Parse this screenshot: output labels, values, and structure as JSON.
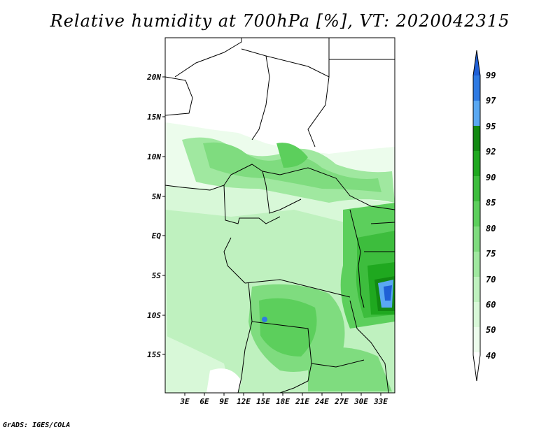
{
  "title": "Relative humidity at 700hPa [%], VT: 2020042315",
  "credit": "GrADS: IGES/COLA",
  "lat_labels": [
    "20N",
    "15N",
    "10N",
    "5N",
    "EQ",
    "5S",
    "10S",
    "15S"
  ],
  "lon_labels": [
    "3E",
    "6E",
    "9E",
    "12E",
    "15E",
    "18E",
    "21E",
    "24E",
    "27E",
    "30E",
    "33E"
  ],
  "colorbar": {
    "levels": [
      "99",
      "97",
      "95",
      "92",
      "90",
      "85",
      "80",
      "75",
      "70",
      "60",
      "50",
      "40"
    ],
    "colors": [
      "#1f5fd6",
      "#2e7ae3",
      "#5aa8f2",
      "#128a12",
      "#1fa81f",
      "#3dbd3d",
      "#5ccf5c",
      "#7fdc7f",
      "#a0e8a0",
      "#bff1bf",
      "#d8f8d8",
      "#ecfcec",
      "#ffffff"
    ]
  }
}
